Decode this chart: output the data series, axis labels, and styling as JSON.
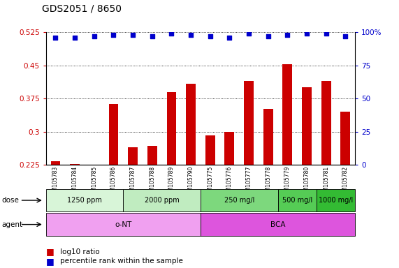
{
  "title": "GDS2051 / 8650",
  "samples": [
    "GSM105783",
    "GSM105784",
    "GSM105785",
    "GSM105786",
    "GSM105787",
    "GSM105788",
    "GSM105789",
    "GSM105790",
    "GSM105775",
    "GSM105776",
    "GSM105777",
    "GSM105778",
    "GSM105779",
    "GSM105780",
    "GSM105781",
    "GSM105782"
  ],
  "log10_ratio": [
    0.233,
    0.227,
    0.226,
    0.362,
    0.265,
    0.268,
    0.39,
    0.408,
    0.292,
    0.3,
    0.415,
    0.352,
    0.453,
    0.4,
    0.415,
    0.345
  ],
  "percentile_rank_pct": [
    96,
    96,
    97,
    98,
    98,
    97,
    99,
    98,
    97,
    96,
    99,
    97,
    98,
    99,
    99,
    97
  ],
  "bar_color": "#cc0000",
  "dot_color": "#0000cc",
  "ylim_left": [
    0.225,
    0.525
  ],
  "ylim_right": [
    0,
    100
  ],
  "yticks_left": [
    0.225,
    0.3,
    0.375,
    0.45,
    0.525
  ],
  "yticks_right": [
    0,
    25,
    50,
    75,
    100
  ],
  "dose_groups": [
    {
      "label": "1250 ppm",
      "start": 0,
      "end": 4,
      "color": "#d8f5d8"
    },
    {
      "label": "2000 ppm",
      "start": 4,
      "end": 8,
      "color": "#c0ecc0"
    },
    {
      "label": "250 mg/l",
      "start": 8,
      "end": 12,
      "color": "#7dd87d"
    },
    {
      "label": "500 mg/l",
      "start": 12,
      "end": 14,
      "color": "#55cc55"
    },
    {
      "label": "1000 mg/l",
      "start": 14,
      "end": 16,
      "color": "#33bb33"
    }
  ],
  "agent_groups": [
    {
      "label": "o-NT",
      "start": 0,
      "end": 8,
      "color": "#f0a0f0"
    },
    {
      "label": "BCA",
      "start": 8,
      "end": 16,
      "color": "#dd55dd"
    }
  ],
  "dose_label": "dose",
  "agent_label": "agent",
  "legend_bar": "log10 ratio",
  "legend_dot": "percentile rank within the sample",
  "background_color": "#ffffff",
  "title_fontsize": 10,
  "axis_label_color_left": "#cc0000",
  "axis_label_color_right": "#0000cc"
}
